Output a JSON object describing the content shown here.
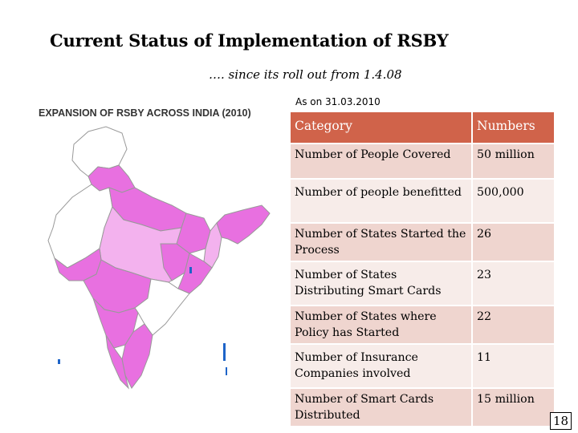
{
  "slide": {
    "title": "Current Status of Implementation of RSBY",
    "subtitle": "…. since its roll out from 1.4.08",
    "as_of": "As on 31.03.2010",
    "page_number": "18"
  },
  "map": {
    "title": "EXPANSION OF RSBY ACROSS INDIA (2010)",
    "colors": {
      "covered": "#e870e0",
      "partial": "#f3b2ee",
      "not_covered": "#ffffff",
      "outline": "#999999",
      "islands": "#1e64c8"
    }
  },
  "table": {
    "headers": [
      "Category",
      "Numbers"
    ],
    "rows": [
      {
        "category": "Number of People Covered",
        "value": "50 million"
      },
      {
        "category": "Number of people benefitted",
        "value": "500,000"
      },
      {
        "category": "Number of States Started the Process",
        "value": "26"
      },
      {
        "category": "Number of States Distributing Smart Cards",
        "value": "23"
      },
      {
        "category": "Number of States where Policy has Started",
        "value": "22"
      },
      {
        "category": "Number of Insurance Companies involved",
        "value": "11"
      },
      {
        "category": "Number of Smart Cards Distributed",
        "value": "15 million"
      }
    ],
    "colors": {
      "header_bg": "#d0634a",
      "row_dark": "#efd5cf",
      "row_light": "#f7ece9"
    }
  }
}
